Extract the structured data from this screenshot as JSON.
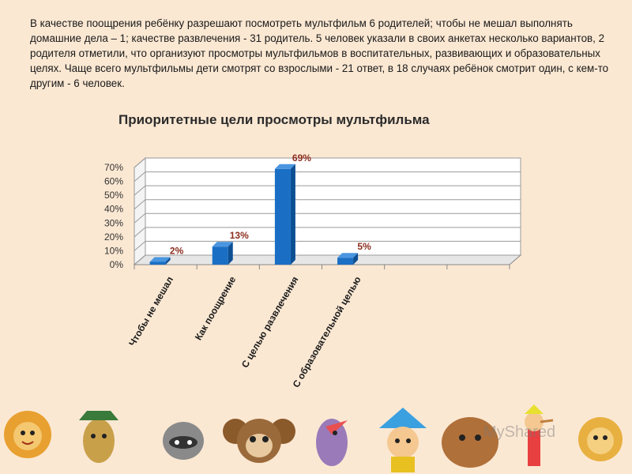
{
  "intro_text": "В качестве поощрения ребёнку разрешают  посмотреть мультфильм  6 родителей; чтобы не мешал выполнять домашние дела – 1;  качестве развлечения - 31 родитель.  5 человек указали в своих анкетах несколько вариантов, 2 родителя отметили, что организуют просмотры мультфильмов в воспитательных, развивающих и образовательных целях. Чаще всего мультфильмы дети смотрят со взрослыми - 21 ответ, в 18 случаях ребёнок смотрит один, с кем-то другим -  6 человек.",
  "chart_data": {
    "type": "bar",
    "title": "Приоритетные цели просмотры мультфильма",
    "categories": [
      "Чтобы не мешал",
      "Как поощрение",
      "С целью развлечения",
      "С образовательной целью"
    ],
    "values": [
      2,
      13,
      69,
      5
    ],
    "value_labels": [
      "2%",
      "13%",
      "69%",
      "5%"
    ],
    "ylim": [
      0,
      70
    ],
    "yticks": [
      "0%",
      "10%",
      "20%",
      "30%",
      "40%",
      "50%",
      "60%",
      "70%"
    ],
    "grid": true,
    "bar_color": "#1a6fc4",
    "label_color": "#8b2d1e"
  },
  "watermark": "MyShared"
}
